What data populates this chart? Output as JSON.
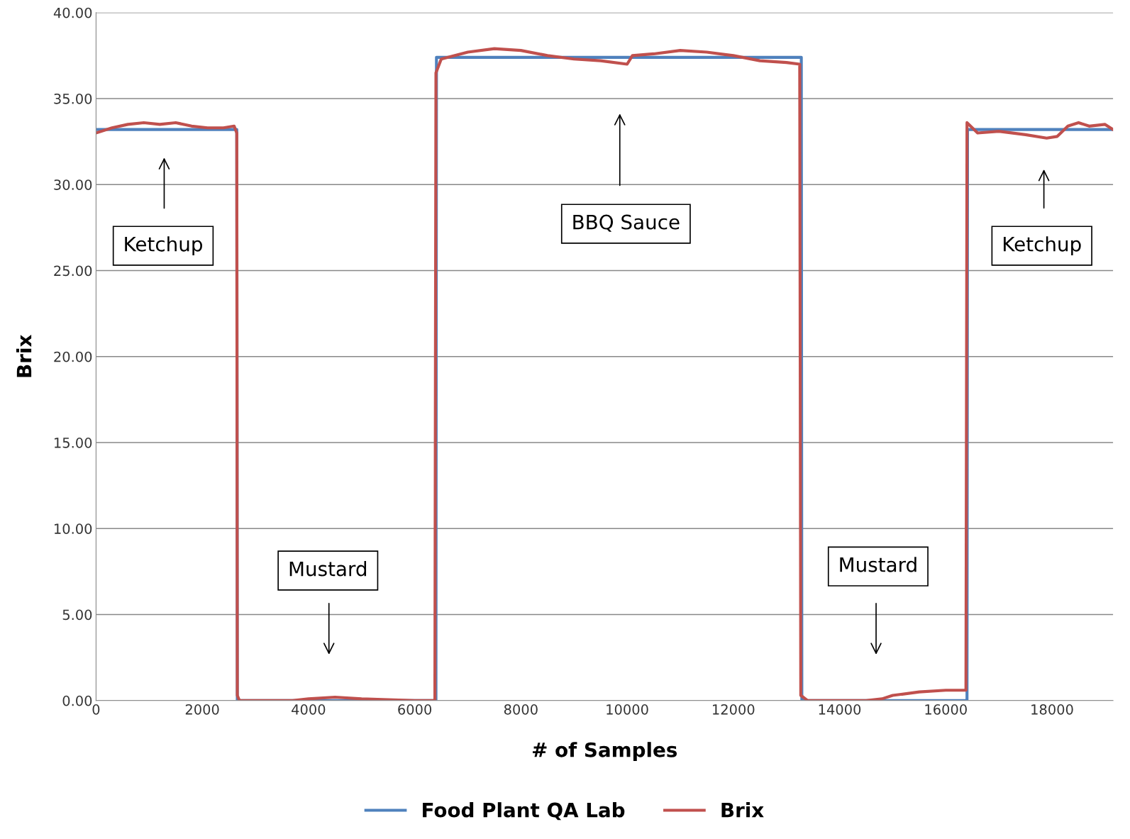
{
  "chart_data": {
    "type": "line",
    "xlabel": "# of Samples",
    "ylabel": "Brix",
    "xlim": [
      0,
      19150
    ],
    "xticks": [
      0,
      2000,
      4000,
      6000,
      8000,
      10000,
      12000,
      14000,
      16000,
      18000
    ],
    "ylim": [
      0,
      40
    ],
    "yticks": [
      {
        "value": 0,
        "label": "0.00"
      },
      {
        "value": 5,
        "label": "5.00"
      },
      {
        "value": 10,
        "label": "10.00"
      },
      {
        "value": 15,
        "label": "15.00"
      },
      {
        "value": 20,
        "label": "20.00"
      },
      {
        "value": 25,
        "label": "25.00"
      },
      {
        "value": 30,
        "label": "30.00"
      },
      {
        "value": 35,
        "label": "35.00"
      },
      {
        "value": 40,
        "label": "40.00"
      }
    ],
    "grid": "y",
    "legend": "bottom",
    "marker": "none",
    "line_style": "solid",
    "series": [
      {
        "name": "Food Plant QA Lab",
        "color": "#4f81bd",
        "x": [
          0,
          2650,
          2660,
          6400,
          6410,
          13280,
          13290,
          16400,
          16410,
          19150
        ],
        "values": [
          33.2,
          33.2,
          0,
          0,
          37.4,
          37.4,
          0,
          0,
          33.2,
          33.2
        ]
      },
      {
        "name": "Brix",
        "color": "#c0504d",
        "x": [
          0,
          300,
          600,
          900,
          1200,
          1500,
          1800,
          2100,
          2400,
          2600,
          2650,
          2660,
          2700,
          3700,
          4000,
          4500,
          5000,
          5500,
          6000,
          6380,
          6400,
          6500,
          7000,
          7500,
          8000,
          8500,
          9000,
          9500,
          10000,
          10100,
          10500,
          11000,
          11500,
          12000,
          12500,
          13000,
          13250,
          13270,
          13400,
          14000,
          14500,
          14800,
          15000,
          15500,
          16000,
          16380,
          16400,
          16600,
          17000,
          17500,
          17900,
          18100,
          18300,
          18500,
          18700,
          19000,
          19150
        ],
        "values": [
          33.0,
          33.3,
          33.5,
          33.6,
          33.5,
          33.6,
          33.4,
          33.3,
          33.3,
          33.4,
          33.0,
          0.3,
          0,
          0,
          0.1,
          0.2,
          0.1,
          0.05,
          0,
          0,
          36.5,
          37.3,
          37.7,
          37.9,
          37.8,
          37.5,
          37.3,
          37.2,
          37.0,
          37.5,
          37.6,
          37.8,
          37.7,
          37.5,
          37.2,
          37.1,
          37.0,
          0.3,
          0,
          0,
          0,
          0.1,
          0.3,
          0.5,
          0.6,
          0.6,
          33.6,
          33.0,
          33.1,
          32.9,
          32.7,
          32.8,
          33.4,
          33.6,
          33.4,
          33.5,
          33.2
        ]
      }
    ],
    "annotations": [
      "Ketchup",
      "Mustard",
      "BBQ Sauce",
      "Mustard",
      "Ketchup"
    ]
  }
}
